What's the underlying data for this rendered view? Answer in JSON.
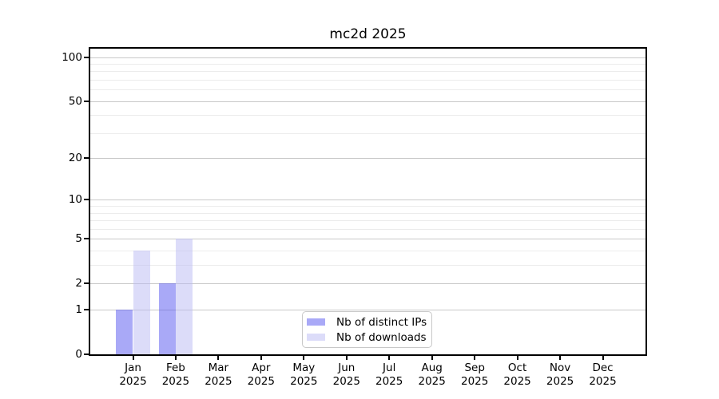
{
  "title": "mc2d 2025",
  "chart_data": {
    "type": "bar",
    "title": "mc2d 2025",
    "categories": [
      "Jan 2025",
      "Feb 2025",
      "Mar 2025",
      "Apr 2025",
      "May 2025",
      "Jun 2025",
      "Jul 2025",
      "Aug 2025",
      "Sep 2025",
      "Oct 2025",
      "Nov 2025",
      "Dec 2025"
    ],
    "x_tick_months": [
      "Jan",
      "Feb",
      "Mar",
      "Apr",
      "May",
      "Jun",
      "Jul",
      "Aug",
      "Sep",
      "Oct",
      "Nov",
      "Dec"
    ],
    "x_tick_year": "2025",
    "series": [
      {
        "name": "Nb of distinct IPs",
        "color": "#5454ef",
        "alpha": 0.5,
        "effective_color": "#a9a9f7",
        "values": [
          1,
          2,
          0,
          0,
          0,
          0,
          0,
          0,
          0,
          0,
          0,
          0
        ]
      },
      {
        "name": "Nb of downloads",
        "color": "#b9b9f3",
        "alpha": 0.5,
        "effective_color": "#dcdcf9",
        "values": [
          4,
          5,
          0,
          0,
          0,
          0,
          0,
          0,
          0,
          0,
          0,
          0
        ]
      }
    ],
    "xlabel": "",
    "ylabel": "",
    "y_scale": "log1p",
    "y_axis_ticks": [
      0,
      1,
      2,
      5,
      10,
      20,
      50,
      100
    ],
    "y_minor_gridlines": [
      3,
      4,
      6,
      7,
      8,
      9,
      30,
      40,
      60,
      70,
      80,
      90
    ],
    "ylim": [
      0,
      114
    ],
    "grid": true,
    "legend_position": "lower center",
    "colors": {
      "major_grid": "#c9c9c9",
      "minor_grid": "#ececec",
      "axis": "#000000",
      "background": "#ffffff",
      "legend_border": "#c8c8c8"
    }
  }
}
